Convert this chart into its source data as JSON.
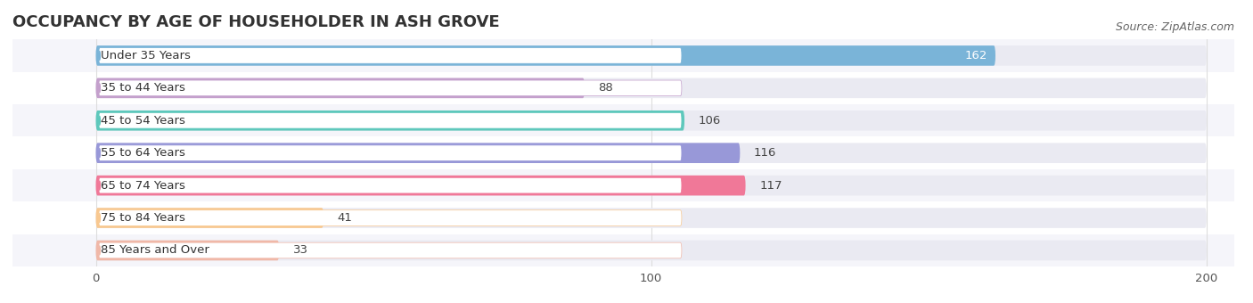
{
  "title": "OCCUPANCY BY AGE OF HOUSEHOLDER IN ASH GROVE",
  "source": "Source: ZipAtlas.com",
  "categories": [
    "Under 35 Years",
    "35 to 44 Years",
    "45 to 54 Years",
    "55 to 64 Years",
    "65 to 74 Years",
    "75 to 84 Years",
    "85 Years and Over"
  ],
  "values": [
    162,
    88,
    106,
    116,
    117,
    41,
    33
  ],
  "bar_colors": [
    "#7ab4d8",
    "#c4a0cc",
    "#5ec8bc",
    "#9898d8",
    "#f07898",
    "#f8c890",
    "#f0b8a8"
  ],
  "bar_bg_color": "#eaeaf2",
  "xlim": [
    -15,
    205
  ],
  "xlim_data": [
    0,
    200
  ],
  "xticks": [
    0,
    100,
    200
  ],
  "title_fontsize": 13,
  "source_fontsize": 9,
  "label_fontsize": 9.5,
  "value_fontsize": 9.5,
  "bar_height": 0.62,
  "background_color": "#ffffff",
  "row_bg_colors": [
    "#f5f5fa",
    "#ffffff"
  ],
  "grid_color": "#dddddd"
}
